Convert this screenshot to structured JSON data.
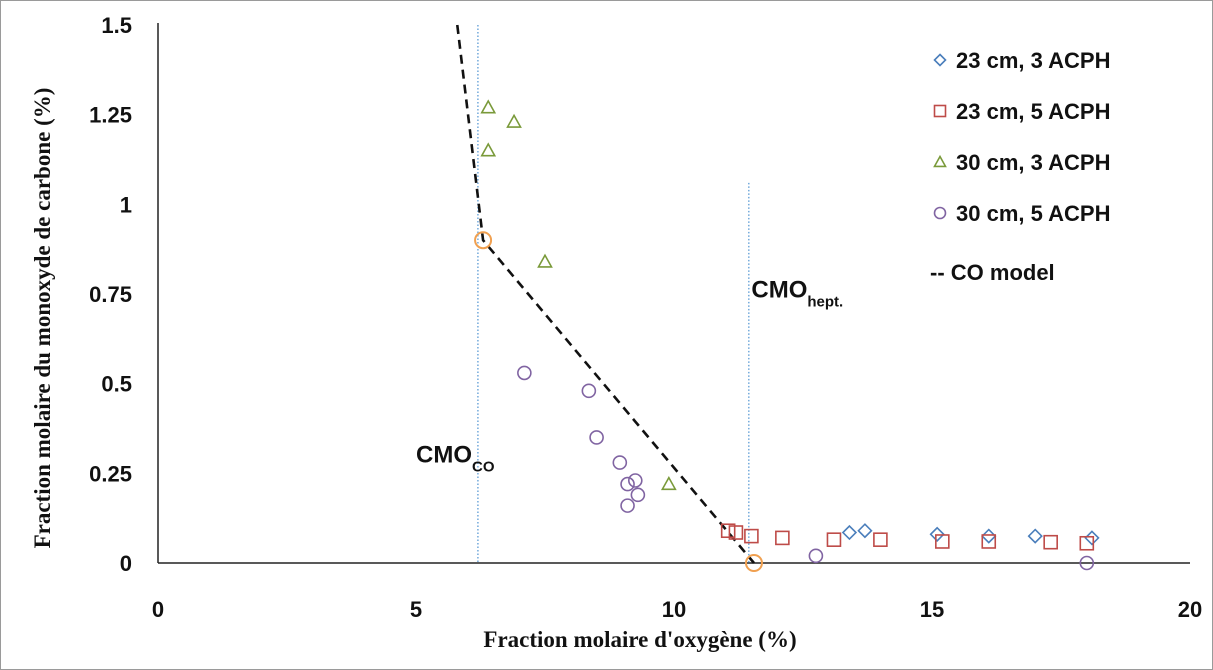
{
  "chart_data": {
    "type": "scatter",
    "xlabel": "Fraction molaire d'oxygène (%)",
    "ylabel": "Fraction molaire du monoxyde de carbone (%)",
    "xlim": [
      0,
      20
    ],
    "ylim": [
      0,
      1.5
    ],
    "x_ticks": [
      "0",
      "5",
      "10",
      "15",
      "20"
    ],
    "y_ticks": [
      "0",
      "0.25",
      "0.5",
      "0.75",
      "1",
      "1.25",
      "1.5"
    ],
    "grid": false,
    "legend_position": "top-right",
    "series": [
      {
        "name": "23 cm, 3 ACPH",
        "marker": "diamond",
        "color": "#4a7ebb",
        "points": [
          [
            13.4,
            0.085
          ],
          [
            13.7,
            0.09
          ],
          [
            15.1,
            0.08
          ],
          [
            16.1,
            0.075
          ],
          [
            17.0,
            0.075
          ],
          [
            18.1,
            0.07
          ]
        ]
      },
      {
        "name": "23 cm, 5 ACPH",
        "marker": "square",
        "color": "#be4b48",
        "points": [
          [
            11.05,
            0.09
          ],
          [
            11.2,
            0.085
          ],
          [
            11.5,
            0.075
          ],
          [
            12.1,
            0.07
          ],
          [
            13.1,
            0.065
          ],
          [
            14.0,
            0.065
          ],
          [
            15.2,
            0.06
          ],
          [
            16.1,
            0.06
          ],
          [
            17.3,
            0.058
          ],
          [
            18.0,
            0.055
          ]
        ]
      },
      {
        "name": "30 cm, 3 ACPH",
        "marker": "triangle",
        "color": "#7a9a3a",
        "points": [
          [
            6.4,
            1.27
          ],
          [
            6.9,
            1.23
          ],
          [
            6.4,
            1.15
          ],
          [
            7.5,
            0.84
          ],
          [
            9.9,
            0.22
          ]
        ]
      },
      {
        "name": "30 cm, 5 ACPH",
        "marker": "circle",
        "color": "#8064a2",
        "points": [
          [
            7.1,
            0.53
          ],
          [
            8.35,
            0.48
          ],
          [
            8.5,
            0.35
          ],
          [
            8.95,
            0.28
          ],
          [
            9.1,
            0.22
          ],
          [
            9.25,
            0.23
          ],
          [
            9.3,
            0.19
          ],
          [
            9.1,
            0.16
          ],
          [
            12.75,
            0.02
          ],
          [
            18.0,
            0.0
          ]
        ]
      },
      {
        "name": "CO model",
        "marker": "dashed-line",
        "color": "#111111",
        "points": [
          [
            5.8,
            1.5
          ],
          [
            6.3,
            0.9
          ],
          [
            11.55,
            0.0
          ]
        ]
      }
    ],
    "highlight_points": [
      {
        "x": 6.3,
        "y": 0.9,
        "color": "#f0a050"
      },
      {
        "x": 11.55,
        "y": 0.0,
        "color": "#f0a050"
      }
    ],
    "reference_lines": [
      {
        "x": 6.2,
        "y_max": 1.5,
        "label_main": "CMO",
        "label_sub": "CO",
        "label_x": 5.0,
        "label_y": 0.28,
        "color": "#5b9bd5"
      },
      {
        "x": 11.45,
        "y_max": 1.06,
        "label_main": "CMO",
        "label_sub": "hept.",
        "label_x": 11.5,
        "label_y": 0.74,
        "color": "#5b9bd5"
      }
    ]
  }
}
